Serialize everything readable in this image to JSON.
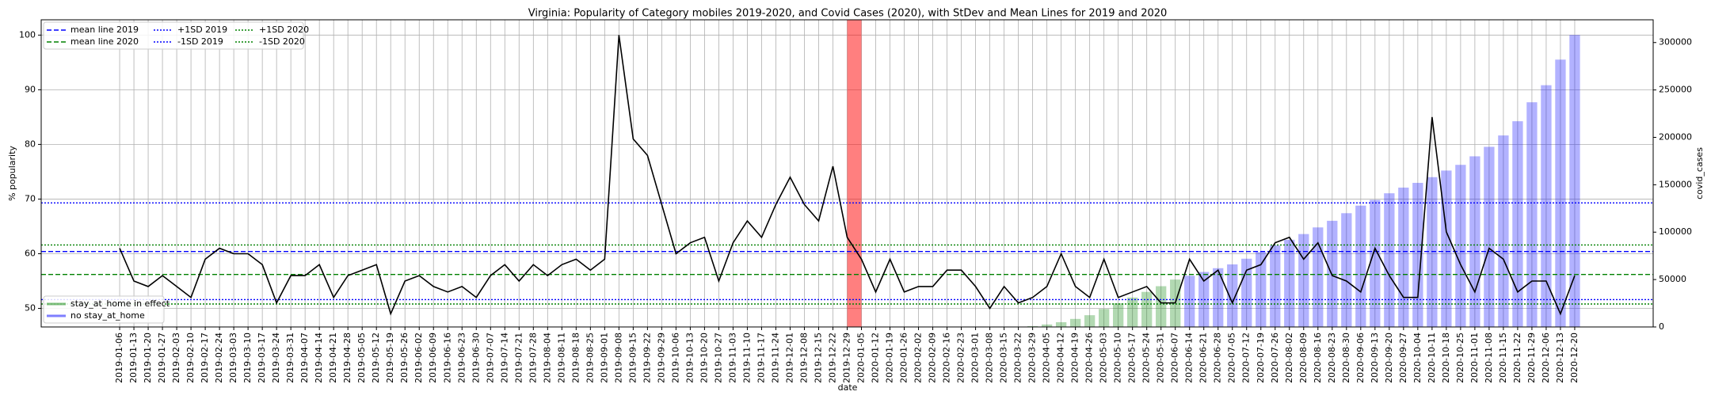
{
  "chart_data": {
    "type": "line",
    "title": "Virginia: Popularity of Category mobiles 2019-2020, and Covid Cases (2020), with StDev and Mean Lines for 2019 and 2020",
    "x_label": "date",
    "y_label": "% popularity",
    "y2_label": "covid_cases",
    "grid": true,
    "ylim": [
      46.6,
      102.8
    ],
    "yticks": [
      50,
      60,
      70,
      80,
      90,
      100
    ],
    "y2lim": [
      0,
      324000
    ],
    "y2ticks": [
      0,
      50000,
      100000,
      150000,
      200000,
      250000,
      300000
    ],
    "categories": [
      "2019-01-06",
      "2019-01-13",
      "2019-01-20",
      "2019-01-27",
      "2019-02-03",
      "2019-02-10",
      "2019-02-17",
      "2019-02-24",
      "2019-03-03",
      "2019-03-10",
      "2019-03-17",
      "2019-03-24",
      "2019-03-31",
      "2019-04-07",
      "2019-04-14",
      "2019-04-21",
      "2019-04-28",
      "2019-05-05",
      "2019-05-12",
      "2019-05-19",
      "2019-05-26",
      "2019-06-02",
      "2019-06-09",
      "2019-06-16",
      "2019-06-23",
      "2019-06-30",
      "2019-07-07",
      "2019-07-14",
      "2019-07-21",
      "2019-07-28",
      "2019-08-04",
      "2019-08-11",
      "2019-08-18",
      "2019-08-25",
      "2019-09-01",
      "2019-09-08",
      "2019-09-15",
      "2019-09-22",
      "2019-09-29",
      "2019-10-06",
      "2019-10-13",
      "2019-10-20",
      "2019-10-27",
      "2019-11-03",
      "2019-11-10",
      "2019-11-17",
      "2019-11-24",
      "2019-12-01",
      "2019-12-08",
      "2019-12-15",
      "2019-12-22",
      "2019-12-29",
      "2020-01-05",
      "2020-01-12",
      "2020-01-19",
      "2020-01-26",
      "2020-02-02",
      "2020-02-09",
      "2020-02-16",
      "2020-02-23",
      "2020-03-01",
      "2020-03-08",
      "2020-03-15",
      "2020-03-22",
      "2020-03-29",
      "2020-04-05",
      "2020-04-12",
      "2020-04-19",
      "2020-04-26",
      "2020-05-03",
      "2020-05-10",
      "2020-05-17",
      "2020-05-24",
      "2020-05-31",
      "2020-06-07",
      "2020-06-14",
      "2020-06-21",
      "2020-06-28",
      "2020-07-05",
      "2020-07-12",
      "2020-07-19",
      "2020-07-26",
      "2020-08-02",
      "2020-08-09",
      "2020-08-16",
      "2020-08-23",
      "2020-08-30",
      "2020-09-06",
      "2020-09-13",
      "2020-09-20",
      "2020-09-27",
      "2020-10-04",
      "2020-10-11",
      "2020-10-18",
      "2020-10-25",
      "2020-11-01",
      "2020-11-08",
      "2020-11-15",
      "2020-11-22",
      "2020-11-29",
      "2020-12-06",
      "2020-12-13",
      "2020-12-20"
    ],
    "series": [
      {
        "type": "line",
        "color": "#000000",
        "values": [
          61,
          55,
          54,
          56,
          54,
          52,
          59,
          61,
          60,
          60,
          58,
          51,
          56,
          56,
          58,
          52,
          56,
          57,
          58,
          49,
          55,
          56,
          54,
          53,
          54,
          52,
          56,
          58,
          55,
          58,
          56,
          58,
          59,
          57,
          59,
          100,
          81,
          78,
          69,
          60,
          62,
          63,
          55,
          62,
          66,
          63,
          69,
          74,
          69,
          66,
          76,
          63,
          59,
          53,
          59,
          53,
          54,
          54,
          57,
          57,
          54,
          50,
          54,
          51,
          52,
          54,
          60,
          54,
          52,
          59,
          52,
          53,
          54,
          51,
          51,
          59,
          55,
          57,
          51,
          57,
          58,
          62,
          63,
          59,
          62,
          56,
          55,
          53,
          61,
          56,
          52,
          52,
          85,
          64,
          58,
          53,
          61,
          59,
          53,
          55,
          55,
          49,
          56
        ]
      },
      {
        "type": "bar",
        "axis": "y2",
        "name": "stay_at_home in effect",
        "color": "#008000",
        "values": [
          null,
          null,
          null,
          null,
          null,
          null,
          null,
          null,
          null,
          null,
          null,
          null,
          null,
          null,
          null,
          null,
          null,
          null,
          null,
          null,
          null,
          null,
          null,
          null,
          null,
          null,
          null,
          null,
          null,
          null,
          null,
          null,
          null,
          null,
          null,
          null,
          null,
          null,
          null,
          null,
          null,
          null,
          null,
          null,
          null,
          null,
          null,
          null,
          null,
          null,
          null,
          null,
          null,
          null,
          null,
          null,
          null,
          null,
          null,
          null,
          null,
          null,
          null,
          null,
          900,
          2600,
          5000,
          8500,
          12400,
          19000,
          25000,
          31000,
          37000,
          43000,
          50000,
          null,
          null,
          null,
          null,
          null,
          null,
          null,
          null,
          null,
          null,
          null,
          null,
          null,
          null,
          null,
          null,
          null,
          null,
          null,
          null,
          null,
          null,
          null,
          null,
          null,
          null,
          null,
          null
        ]
      },
      {
        "type": "bar",
        "axis": "y2",
        "name": "no stay_at_home",
        "color": "#0000ff",
        "values": [
          null,
          null,
          null,
          null,
          null,
          null,
          null,
          null,
          null,
          null,
          null,
          null,
          null,
          null,
          null,
          null,
          null,
          null,
          null,
          null,
          null,
          null,
          null,
          null,
          null,
          null,
          null,
          null,
          null,
          null,
          null,
          null,
          null,
          null,
          null,
          null,
          null,
          null,
          null,
          null,
          null,
          null,
          null,
          null,
          null,
          null,
          null,
          null,
          null,
          null,
          null,
          null,
          null,
          null,
          null,
          null,
          null,
          null,
          null,
          null,
          null,
          null,
          null,
          300,
          null,
          null,
          null,
          null,
          null,
          null,
          null,
          null,
          null,
          null,
          null,
          54000,
          58000,
          62000,
          66000,
          72000,
          79000,
          86000,
          92000,
          98000,
          105000,
          112000,
          120000,
          128000,
          134000,
          141000,
          147000,
          152000,
          158000,
          165000,
          171000,
          180000,
          190000,
          202000,
          217000,
          237000,
          255000,
          282000,
          308000
        ]
      }
    ],
    "reference_lines": [
      {
        "name": "mean line 2019",
        "color": "#0000ff",
        "style": "dashed",
        "value": 60.4
      },
      {
        "name": "mean line 2020",
        "color": "#008000",
        "style": "dashed",
        "value": 56.2
      },
      {
        "name": "+1SD 2019",
        "color": "#0000ff",
        "style": "dotted",
        "value": 69.3
      },
      {
        "name": "-1SD 2019",
        "color": "#0000ff",
        "style": "dotted",
        "value": 51.6
      },
      {
        "name": "+1SD 2020",
        "color": "#008000",
        "style": "dotted",
        "value": 61.6
      },
      {
        "name": "-1SD 2020",
        "color": "#008000",
        "style": "dotted",
        "value": 50.8
      }
    ],
    "highlight_span": {
      "color": "#ff0000",
      "range": [
        "2019-12-29",
        "2020-01-05"
      ]
    }
  }
}
